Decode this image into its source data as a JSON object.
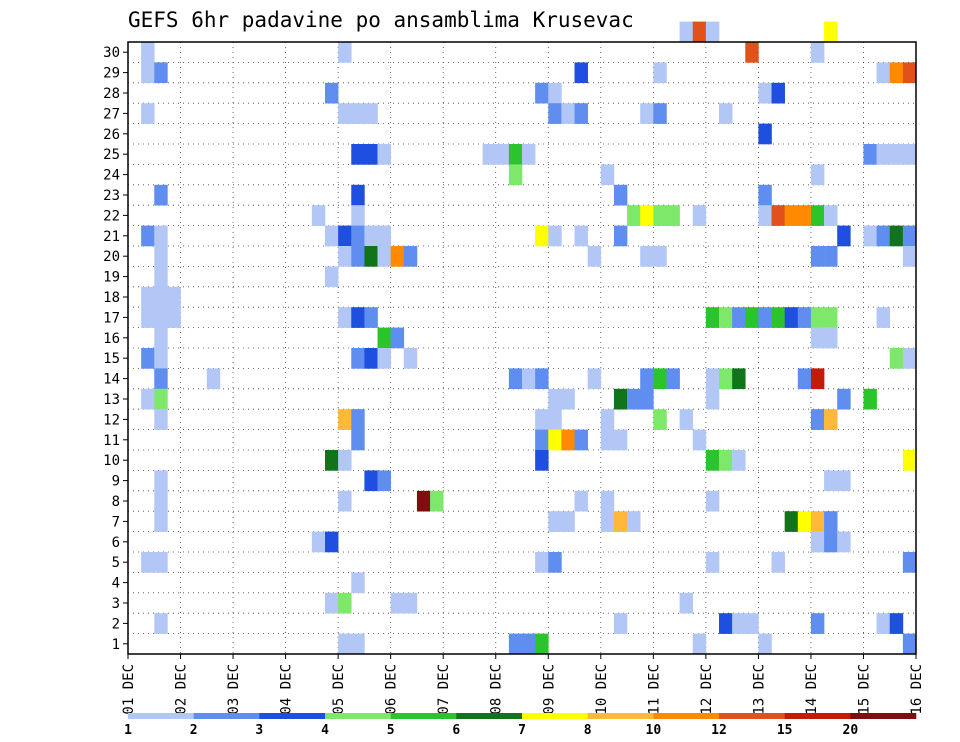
{
  "chart_data": {
    "type": "heatmap",
    "title": "GEFS 6hr padavine po ansamblima Krusevac",
    "x_ticks": [
      "01 DEC",
      "02 DEC",
      "03 DEC",
      "04 DEC",
      "05 DEC",
      "06 DEC",
      "07 DEC",
      "08 DEC",
      "09 DEC",
      "10 DEC",
      "11 DEC",
      "12 DEC",
      "13 DEC",
      "14 DEC",
      "15 DEC",
      "16 DEC"
    ],
    "y_ticks": [
      1,
      2,
      3,
      4,
      5,
      6,
      7,
      8,
      9,
      10,
      11,
      12,
      13,
      14,
      15,
      16,
      17,
      18,
      19,
      20,
      21,
      22,
      23,
      24,
      25,
      26,
      27,
      28,
      29,
      30
    ],
    "ylim": [
      0,
      30
    ],
    "steps_per_day": 4,
    "grid": true,
    "colorbar": {
      "thresholds": [
        "1",
        "2",
        "3",
        "4",
        "5",
        "6",
        "7",
        "8",
        "10",
        "12",
        "15",
        "20"
      ],
      "colors": [
        "#b3c7f7",
        "#5f8ef0",
        "#1f4fe0",
        "#7ee86a",
        "#2cc42c",
        "#12741a",
        "#ffff00",
        "#ffb83a",
        "#ff8a00",
        "#e0521a",
        "#c41a0a",
        "#7f0f0f"
      ]
    },
    "cells": [
      [
        30,
        42,
        0
      ],
      [
        30,
        43,
        9
      ],
      [
        30,
        44,
        0
      ],
      [
        30,
        53,
        6
      ],
      [
        29,
        1,
        0
      ],
      [
        29,
        16,
        0
      ],
      [
        29,
        47,
        9
      ],
      [
        29,
        52,
        0
      ],
      [
        28,
        1,
        0
      ],
      [
        28,
        2,
        1
      ],
      [
        28,
        34,
        2
      ],
      [
        28,
        40,
        0
      ],
      [
        28,
        57,
        0
      ],
      [
        28,
        58,
        8
      ],
      [
        28,
        59,
        9
      ],
      [
        27,
        15,
        1
      ],
      [
        27,
        31,
        1
      ],
      [
        27,
        32,
        0
      ],
      [
        27,
        48,
        0
      ],
      [
        27,
        49,
        2
      ],
      [
        26,
        1,
        0
      ],
      [
        26,
        16,
        0
      ],
      [
        26,
        17,
        0
      ],
      [
        26,
        18,
        0
      ],
      [
        26,
        32,
        1
      ],
      [
        26,
        33,
        0
      ],
      [
        26,
        34,
        1
      ],
      [
        26,
        39,
        0
      ],
      [
        26,
        40,
        1
      ],
      [
        26,
        45,
        0
      ],
      [
        25,
        48,
        2
      ],
      [
        24,
        17,
        2
      ],
      [
        24,
        18,
        2
      ],
      [
        24,
        19,
        0
      ],
      [
        24,
        27,
        0
      ],
      [
        24,
        28,
        0
      ],
      [
        24,
        29,
        4
      ],
      [
        24,
        30,
        0
      ],
      [
        24,
        56,
        1
      ],
      [
        24,
        57,
        0
      ],
      [
        24,
        58,
        0
      ],
      [
        24,
        59,
        0
      ],
      [
        23,
        29,
        3
      ],
      [
        23,
        36,
        0
      ],
      [
        23,
        52,
        0
      ],
      [
        22,
        2,
        1
      ],
      [
        22,
        17,
        2
      ],
      [
        22,
        37,
        1
      ],
      [
        22,
        48,
        1
      ],
      [
        21,
        14,
        0
      ],
      [
        21,
        17,
        0
      ],
      [
        21,
        38,
        3
      ],
      [
        21,
        39,
        6
      ],
      [
        21,
        40,
        3
      ],
      [
        21,
        41,
        3
      ],
      [
        21,
        43,
        0
      ],
      [
        21,
        48,
        0
      ],
      [
        21,
        49,
        9
      ],
      [
        21,
        50,
        8
      ],
      [
        21,
        51,
        8
      ],
      [
        21,
        52,
        4
      ],
      [
        21,
        53,
        0
      ],
      [
        20,
        1,
        1
      ],
      [
        20,
        2,
        0
      ],
      [
        20,
        15,
        0
      ],
      [
        20,
        16,
        2
      ],
      [
        20,
        17,
        1
      ],
      [
        20,
        18,
        0
      ],
      [
        20,
        19,
        0
      ],
      [
        20,
        31,
        6
      ],
      [
        20,
        32,
        0
      ],
      [
        20,
        34,
        0
      ],
      [
        20,
        37,
        1
      ],
      [
        20,
        54,
        2
      ],
      [
        20,
        56,
        0
      ],
      [
        20,
        57,
        1
      ],
      [
        20,
        58,
        5
      ],
      [
        20,
        59,
        1
      ],
      [
        19,
        2,
        0
      ],
      [
        19,
        16,
        0
      ],
      [
        19,
        17,
        1
      ],
      [
        19,
        18,
        5
      ],
      [
        19,
        19,
        0
      ],
      [
        19,
        20,
        8
      ],
      [
        19,
        21,
        1
      ],
      [
        19,
        35,
        0
      ],
      [
        19,
        39,
        0
      ],
      [
        19,
        40,
        0
      ],
      [
        19,
        52,
        1
      ],
      [
        19,
        53,
        1
      ],
      [
        19,
        59,
        0
      ],
      [
        18,
        2,
        0
      ],
      [
        18,
        15,
        0
      ],
      [
        17,
        1,
        0
      ],
      [
        17,
        2,
        0
      ],
      [
        17,
        3,
        0
      ],
      [
        16,
        1,
        0
      ],
      [
        16,
        2,
        0
      ],
      [
        16,
        3,
        0
      ],
      [
        16,
        16,
        0
      ],
      [
        16,
        17,
        2
      ],
      [
        16,
        18,
        1
      ],
      [
        16,
        44,
        4
      ],
      [
        16,
        45,
        3
      ],
      [
        16,
        46,
        1
      ],
      [
        16,
        47,
        4
      ],
      [
        16,
        48,
        1
      ],
      [
        16,
        49,
        4
      ],
      [
        16,
        50,
        2
      ],
      [
        16,
        51,
        1
      ],
      [
        16,
        52,
        3
      ],
      [
        16,
        53,
        3
      ],
      [
        16,
        57,
        0
      ],
      [
        15,
        2,
        0
      ],
      [
        15,
        19,
        4
      ],
      [
        15,
        20,
        1
      ],
      [
        15,
        52,
        0
      ],
      [
        15,
        53,
        0
      ],
      [
        14,
        1,
        1
      ],
      [
        14,
        2,
        0
      ],
      [
        14,
        17,
        1
      ],
      [
        14,
        18,
        2
      ],
      [
        14,
        19,
        0
      ],
      [
        14,
        21,
        0
      ],
      [
        14,
        58,
        3
      ],
      [
        14,
        59,
        0
      ],
      [
        13,
        2,
        1
      ],
      [
        13,
        6,
        0
      ],
      [
        13,
        29,
        1
      ],
      [
        13,
        30,
        0
      ],
      [
        13,
        31,
        1
      ],
      [
        13,
        35,
        0
      ],
      [
        13,
        39,
        1
      ],
      [
        13,
        40,
        4
      ],
      [
        13,
        41,
        1
      ],
      [
        13,
        44,
        0
      ],
      [
        13,
        45,
        3
      ],
      [
        13,
        46,
        5
      ],
      [
        13,
        51,
        1
      ],
      [
        13,
        52,
        10
      ],
      [
        12,
        1,
        0
      ],
      [
        12,
        2,
        3
      ],
      [
        12,
        32,
        0
      ],
      [
        12,
        33,
        0
      ],
      [
        12,
        37,
        5
      ],
      [
        12,
        38,
        1
      ],
      [
        12,
        39,
        1
      ],
      [
        12,
        44,
        0
      ],
      [
        12,
        54,
        1
      ],
      [
        12,
        56,
        4
      ],
      [
        11,
        2,
        0
      ],
      [
        11,
        16,
        7
      ],
      [
        11,
        17,
        1
      ],
      [
        11,
        31,
        0
      ],
      [
        11,
        32,
        0
      ],
      [
        11,
        36,
        0
      ],
      [
        11,
        40,
        3
      ],
      [
        11,
        42,
        0
      ],
      [
        11,
        52,
        1
      ],
      [
        11,
        53,
        7
      ],
      [
        10,
        17,
        1
      ],
      [
        10,
        31,
        1
      ],
      [
        10,
        32,
        6
      ],
      [
        10,
        33,
        8
      ],
      [
        10,
        34,
        1
      ],
      [
        10,
        36,
        0
      ],
      [
        10,
        37,
        0
      ],
      [
        10,
        43,
        0
      ],
      [
        9,
        15,
        5
      ],
      [
        9,
        16,
        0
      ],
      [
        9,
        31,
        2
      ],
      [
        9,
        44,
        4
      ],
      [
        9,
        45,
        3
      ],
      [
        9,
        46,
        0
      ],
      [
        9,
        59,
        6
      ],
      [
        8,
        2,
        0
      ],
      [
        8,
        18,
        2
      ],
      [
        8,
        19,
        1
      ],
      [
        8,
        53,
        0
      ],
      [
        8,
        54,
        0
      ],
      [
        7,
        2,
        0
      ],
      [
        7,
        16,
        0
      ],
      [
        7,
        22,
        11
      ],
      [
        7,
        23,
        3
      ],
      [
        7,
        34,
        0
      ],
      [
        7,
        36,
        0
      ],
      [
        7,
        44,
        0
      ],
      [
        6,
        2,
        0
      ],
      [
        6,
        32,
        0
      ],
      [
        6,
        33,
        0
      ],
      [
        6,
        36,
        0
      ],
      [
        6,
        37,
        7
      ],
      [
        6,
        38,
        0
      ],
      [
        6,
        50,
        5
      ],
      [
        6,
        51,
        6
      ],
      [
        6,
        52,
        7
      ],
      [
        6,
        53,
        1
      ],
      [
        5,
        14,
        0
      ],
      [
        5,
        15,
        2
      ],
      [
        5,
        52,
        0
      ],
      [
        5,
        53,
        1
      ],
      [
        5,
        54,
        0
      ],
      [
        4,
        1,
        0
      ],
      [
        4,
        2,
        0
      ],
      [
        4,
        31,
        0
      ],
      [
        4,
        32,
        1
      ],
      [
        4,
        44,
        0
      ],
      [
        4,
        49,
        0
      ],
      [
        4,
        59,
        1
      ],
      [
        3,
        17,
        0
      ],
      [
        2,
        15,
        0
      ],
      [
        2,
        16,
        3
      ],
      [
        2,
        20,
        0
      ],
      [
        2,
        21,
        0
      ],
      [
        2,
        42,
        0
      ],
      [
        1,
        2,
        0
      ],
      [
        1,
        37,
        0
      ],
      [
        1,
        45,
        2
      ],
      [
        1,
        46,
        0
      ],
      [
        1,
        47,
        0
      ],
      [
        1,
        52,
        1
      ],
      [
        1,
        57,
        0
      ],
      [
        1,
        58,
        2
      ],
      [
        0,
        16,
        0
      ],
      [
        0,
        17,
        0
      ],
      [
        0,
        29,
        1
      ],
      [
        0,
        30,
        1
      ],
      [
        0,
        31,
        4
      ],
      [
        0,
        43,
        0
      ],
      [
        0,
        48,
        0
      ],
      [
        0,
        59,
        1
      ]
    ]
  }
}
